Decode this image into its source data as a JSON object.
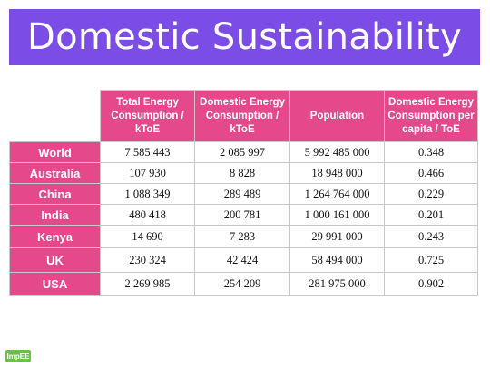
{
  "title": "Domestic Sustainability",
  "table": {
    "columns": [
      "Total Energy Consumption / kToE",
      "Domestic Energy Consumption / kToE",
      "Population",
      "Domestic Energy Consumption per capita / ToE"
    ],
    "rows": [
      {
        "label": "World",
        "values": [
          "7 585 443",
          "2 085 997",
          "5 992 485 000",
          "0.348"
        ]
      },
      {
        "label": "Australia",
        "values": [
          "107 930",
          "8 828",
          "18 948 000",
          "0.466"
        ]
      },
      {
        "label": "China",
        "values": [
          "1 088 349",
          "289 489",
          "1 264 764 000",
          "0.229"
        ]
      },
      {
        "label": "India",
        "values": [
          "480 418",
          "200 781",
          "1 000 161 000",
          "0.201"
        ]
      },
      {
        "label": "Kenya",
        "values": [
          "14 690",
          "7 283",
          "29 991 000",
          "0.243"
        ]
      },
      {
        "label": "UK",
        "values": [
          "230 324",
          "42 424",
          "58 494 000",
          "0.725"
        ]
      },
      {
        "label": "USA",
        "values": [
          "2 269 985",
          "254 209",
          "281 975 000",
          "0.902"
        ]
      }
    ]
  },
  "logo_text": "ImpEE",
  "colors": {
    "title_bar": "#7c4de6",
    "header_fill": "#e5488b",
    "logo": "#6cc04a"
  }
}
